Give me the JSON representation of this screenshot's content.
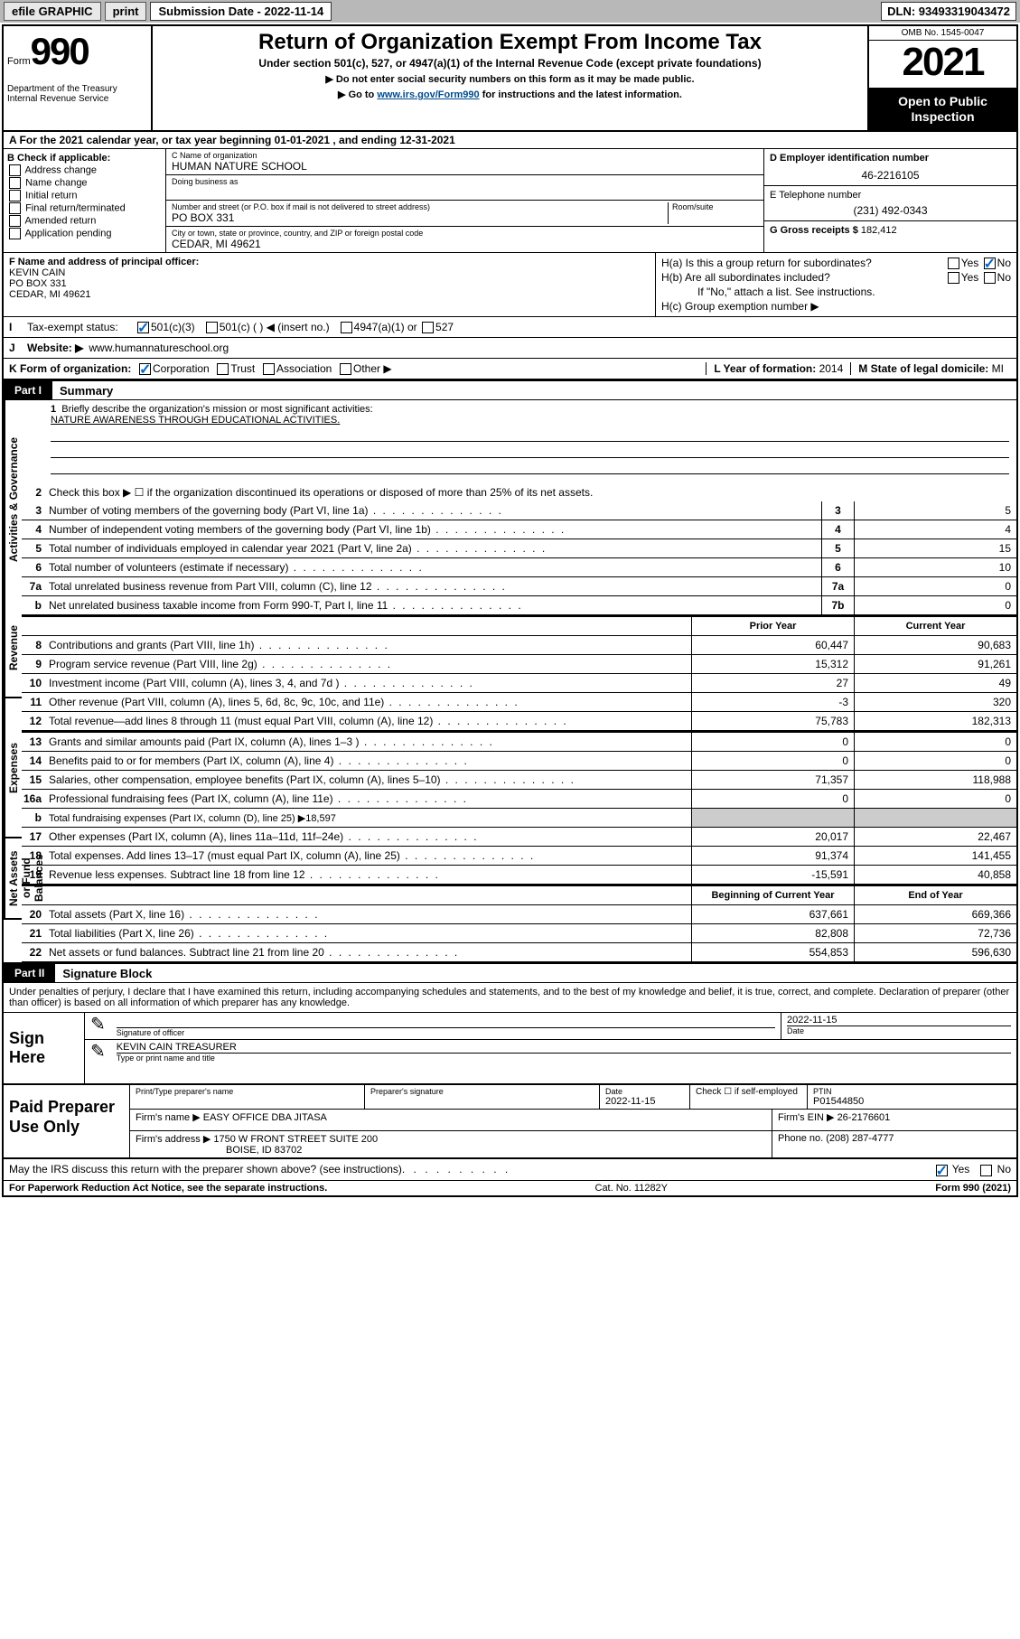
{
  "toolbar": {
    "efile": "efile GRAPHIC",
    "print": "print",
    "sub_date_label": "Submission Date - 2022-11-14",
    "dln": "DLN: 93493319043472"
  },
  "header": {
    "form_word": "Form",
    "form_num": "990",
    "dept": "Department of the Treasury\nInternal Revenue Service",
    "title": "Return of Organization Exempt From Income Tax",
    "sub1": "Under section 501(c), 527, or 4947(a)(1) of the Internal Revenue Code (except private foundations)",
    "sub2": "▶ Do not enter social security numbers on this form as it may be made public.",
    "sub3_pre": "▶ Go to ",
    "sub3_link": "www.irs.gov/Form990",
    "sub3_post": " for instructions and the latest information.",
    "omb": "OMB No. 1545-0047",
    "year": "2021",
    "open": "Open to Public Inspection"
  },
  "row_a": "A For the 2021 calendar year, or tax year beginning 01-01-2021   , and ending 12-31-2021",
  "section_b": {
    "title": "B Check if applicable:",
    "items": [
      "Address change",
      "Name change",
      "Initial return",
      "Final return/terminated",
      "Amended return",
      "Application pending"
    ]
  },
  "section_c": {
    "name_label": "C Name of organization",
    "name": "HUMAN NATURE SCHOOL",
    "dba_label": "Doing business as",
    "street_label": "Number and street (or P.O. box if mail is not delivered to street address)",
    "room_label": "Room/suite",
    "street": "PO BOX 331",
    "city_label": "City or town, state or province, country, and ZIP or foreign postal code",
    "city": "CEDAR, MI  49621"
  },
  "section_d": {
    "ein_label": "D Employer identification number",
    "ein": "46-2216105",
    "tel_label": "E Telephone number",
    "tel": "(231) 492-0343",
    "gross_label": "G Gross receipts $",
    "gross": "182,412"
  },
  "section_f": {
    "label": "F Name and address of principal officer:",
    "name": "KEVIN CAIN",
    "street": "PO BOX 331",
    "city": "CEDAR, MI  49621"
  },
  "section_h": {
    "ha": "H(a)  Is this a group return for subordinates?",
    "hb": "H(b)  Are all subordinates included?",
    "hb_note": "If \"No,\" attach a list. See instructions.",
    "hc": "H(c)  Group exemption number ▶"
  },
  "row_i": {
    "label": "Tax-exempt status:",
    "opts": [
      "501(c)(3)",
      "501(c) (  ) ◀ (insert no.)",
      "4947(a)(1) or",
      "527"
    ]
  },
  "row_j": {
    "label": "Website: ▶",
    "value": "www.humannatureschool.org"
  },
  "row_k": {
    "label": "K Form of organization:",
    "opts": [
      "Corporation",
      "Trust",
      "Association",
      "Other ▶"
    ],
    "year_label": "L Year of formation:",
    "year": "2014",
    "state_label": "M State of legal domicile:",
    "state": "MI"
  },
  "part1": {
    "header": "Part I",
    "title": "Summary",
    "mission_label": "Briefly describe the organization's mission or most significant activities:",
    "mission": "NATURE AWARENESS THROUGH EDUCATIONAL ACTIVITIES.",
    "line2": "Check this box ▶ ☐  if the organization discontinued its operations or disposed of more than 25% of its net assets.",
    "tabs": {
      "ag": "Activities & Governance",
      "rev": "Revenue",
      "exp": "Expenses",
      "net": "Net Assets or Fund Balances"
    },
    "lines_single": [
      {
        "n": "3",
        "desc": "Number of voting members of the governing body (Part VI, line 1a)",
        "lbl": "3",
        "v": "5"
      },
      {
        "n": "4",
        "desc": "Number of independent voting members of the governing body (Part VI, line 1b)",
        "lbl": "4",
        "v": "4"
      },
      {
        "n": "5",
        "desc": "Total number of individuals employed in calendar year 2021 (Part V, line 2a)",
        "lbl": "5",
        "v": "15"
      },
      {
        "n": "6",
        "desc": "Total number of volunteers (estimate if necessary)",
        "lbl": "6",
        "v": "10"
      },
      {
        "n": "7a",
        "desc": "Total unrelated business revenue from Part VIII, column (C), line 12",
        "lbl": "7a",
        "v": "0"
      },
      {
        "n": "b",
        "desc": "Net unrelated business taxable income from Form 990-T, Part I, line 11",
        "lbl": "7b",
        "v": "0"
      }
    ],
    "col_headers": {
      "prior": "Prior Year",
      "current": "Current Year",
      "beg": "Beginning of Current Year",
      "end": "End of Year"
    },
    "lines_rev": [
      {
        "n": "8",
        "desc": "Contributions and grants (Part VIII, line 1h)",
        "p": "60,447",
        "c": "90,683"
      },
      {
        "n": "9",
        "desc": "Program service revenue (Part VIII, line 2g)",
        "p": "15,312",
        "c": "91,261"
      },
      {
        "n": "10",
        "desc": "Investment income (Part VIII, column (A), lines 3, 4, and 7d )",
        "p": "27",
        "c": "49"
      },
      {
        "n": "11",
        "desc": "Other revenue (Part VIII, column (A), lines 5, 6d, 8c, 9c, 10c, and 11e)",
        "p": "-3",
        "c": "320"
      },
      {
        "n": "12",
        "desc": "Total revenue—add lines 8 through 11 (must equal Part VIII, column (A), line 12)",
        "p": "75,783",
        "c": "182,313"
      }
    ],
    "lines_exp": [
      {
        "n": "13",
        "desc": "Grants and similar amounts paid (Part IX, column (A), lines 1–3 )",
        "p": "0",
        "c": "0"
      },
      {
        "n": "14",
        "desc": "Benefits paid to or for members (Part IX, column (A), line 4)",
        "p": "0",
        "c": "0"
      },
      {
        "n": "15",
        "desc": "Salaries, other compensation, employee benefits (Part IX, column (A), lines 5–10)",
        "p": "71,357",
        "c": "118,988"
      },
      {
        "n": "16a",
        "desc": "Professional fundraising fees (Part IX, column (A), line 11e)",
        "p": "0",
        "c": "0"
      }
    ],
    "line16b": {
      "n": "b",
      "desc": "Total fundraising expenses (Part IX, column (D), line 25) ▶18,597"
    },
    "lines_exp2": [
      {
        "n": "17",
        "desc": "Other expenses (Part IX, column (A), lines 11a–11d, 11f–24e)",
        "p": "20,017",
        "c": "22,467"
      },
      {
        "n": "18",
        "desc": "Total expenses. Add lines 13–17 (must equal Part IX, column (A), line 25)",
        "p": "91,374",
        "c": "141,455"
      },
      {
        "n": "19",
        "desc": "Revenue less expenses. Subtract line 18 from line 12",
        "p": "-15,591",
        "c": "40,858"
      }
    ],
    "lines_net": [
      {
        "n": "20",
        "desc": "Total assets (Part X, line 16)",
        "p": "637,661",
        "c": "669,366"
      },
      {
        "n": "21",
        "desc": "Total liabilities (Part X, line 26)",
        "p": "82,808",
        "c": "72,736"
      },
      {
        "n": "22",
        "desc": "Net assets or fund balances. Subtract line 21 from line 20",
        "p": "554,853",
        "c": "596,630"
      }
    ]
  },
  "part2": {
    "header": "Part II",
    "title": "Signature Block",
    "intro": "Under penalties of perjury, I declare that I have examined this return, including accompanying schedules and statements, and to the best of my knowledge and belief, it is true, correct, and complete. Declaration of preparer (other than officer) is based on all information of which preparer has any knowledge.",
    "sign_here": "Sign Here",
    "sig_officer_label": "Signature of officer",
    "date_label": "Date",
    "date": "2022-11-15",
    "name_title": "KEVIN CAIN  TREASURER",
    "name_title_label": "Type or print name and title",
    "paid": "Paid Preparer Use Only",
    "prep_name_label": "Print/Type preparer's name",
    "prep_sig_label": "Preparer's signature",
    "prep_date_label": "Date",
    "prep_date": "2022-11-15",
    "check_label": "Check ☐ if self-employed",
    "ptin_label": "PTIN",
    "ptin": "P01544850",
    "firm_name_label": "Firm's name    ▶",
    "firm_name": "EASY OFFICE DBA JITASA",
    "firm_ein_label": "Firm's EIN ▶",
    "firm_ein": "26-2176601",
    "firm_addr_label": "Firm's address ▶",
    "firm_addr1": "1750 W FRONT STREET SUITE 200",
    "firm_addr2": "BOISE, ID  83702",
    "phone_label": "Phone no.",
    "phone": "(208) 287-4777",
    "discuss": "May the IRS discuss this return with the preparer shown above? (see instructions)"
  },
  "footer": {
    "paperwork": "For Paperwork Reduction Act Notice, see the separate instructions.",
    "cat": "Cat. No. 11282Y",
    "form": "Form 990 (2021)"
  }
}
